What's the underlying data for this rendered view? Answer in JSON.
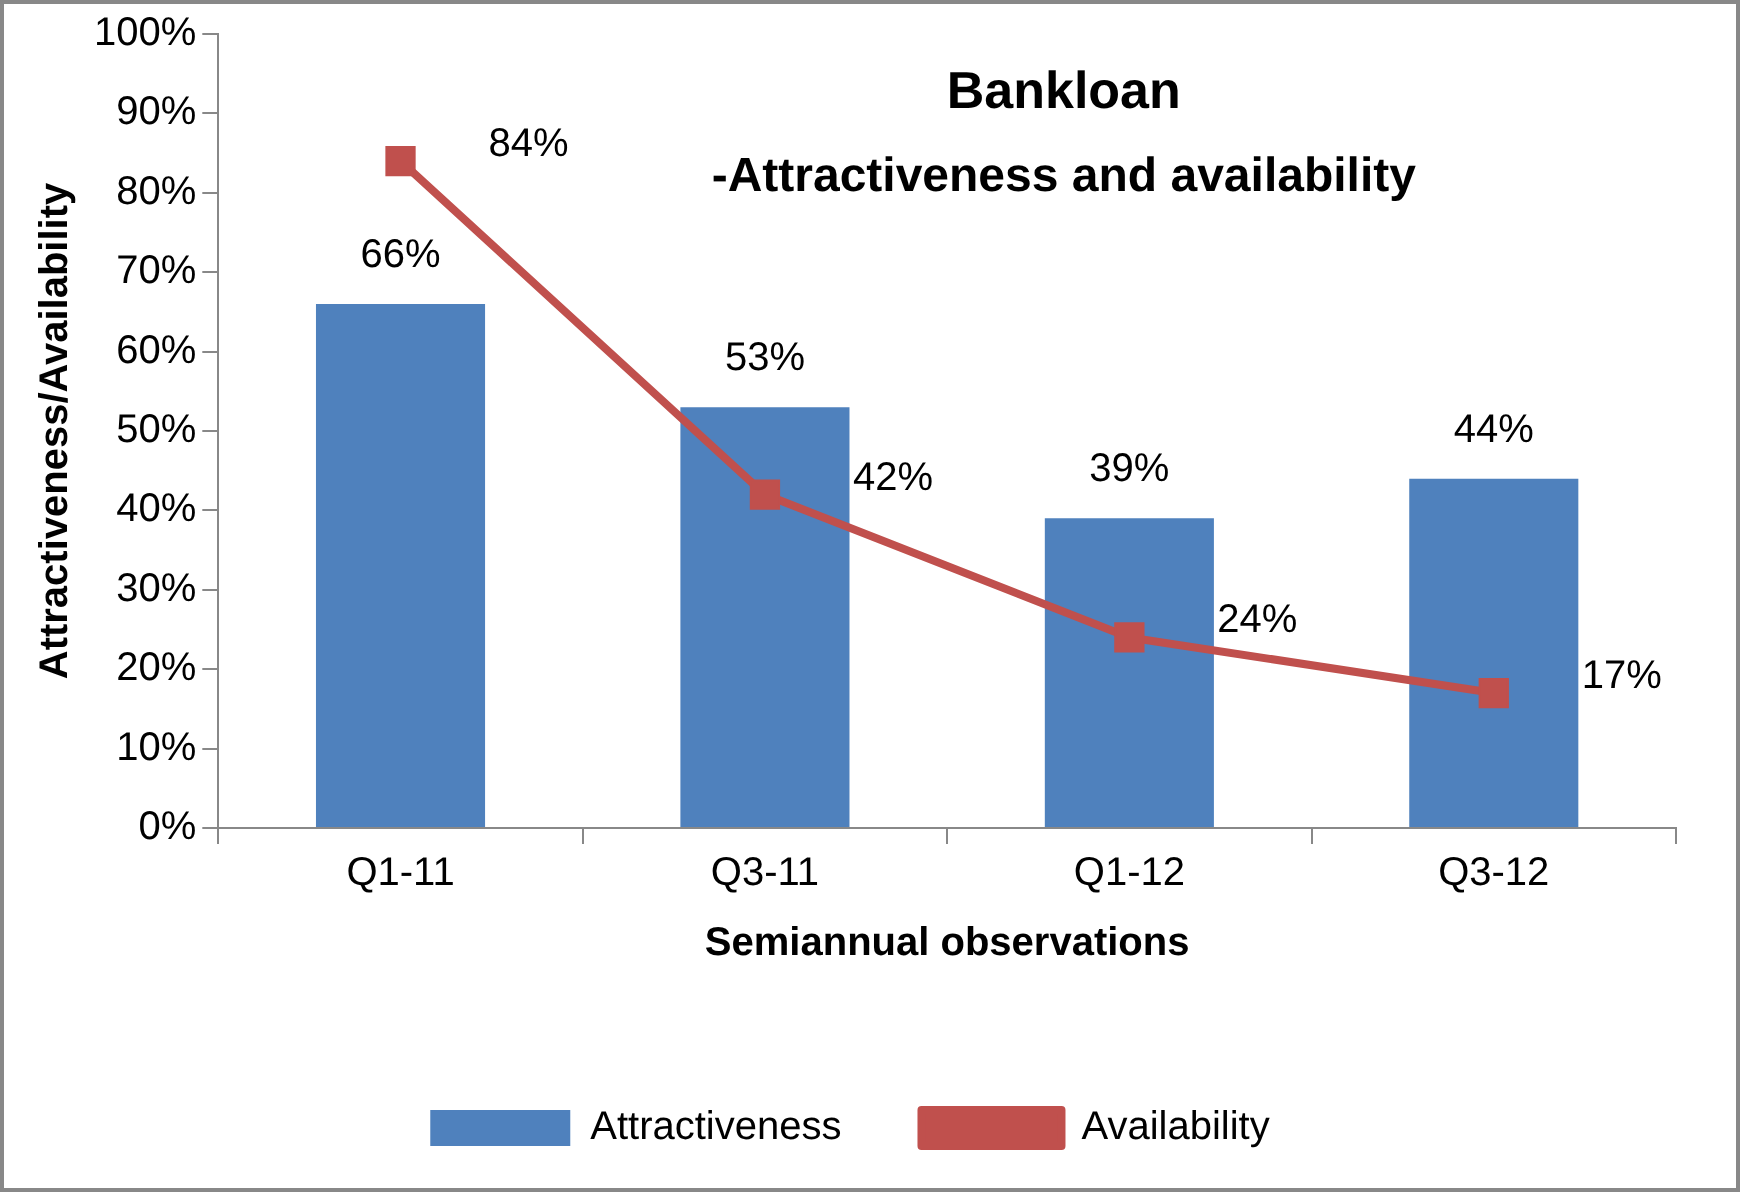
{
  "chart_data": {
    "type": "bar",
    "title": "Bankloan",
    "subtitle": "-Attractiveness and availability",
    "xlabel": "Semiannual observations",
    "ylabel": "Attractiveness/Availability",
    "categories": [
      "Q1-11",
      "Q3-11",
      "Q1-12",
      "Q3-12"
    ],
    "series": [
      {
        "name": "Attractiveness",
        "color": "#4f81bd",
        "values": [
          66,
          53,
          39,
          44
        ],
        "value_labels": [
          "66%",
          "53%",
          "39%",
          "44%"
        ]
      },
      {
        "name": "Availability",
        "type": "line",
        "color": "#c0504d",
        "values": [
          84,
          42,
          24,
          17
        ],
        "value_labels": [
          "84%",
          "42%",
          "24%",
          "17%"
        ],
        "marker": "square"
      }
    ],
    "ylim": [
      0,
      100
    ],
    "yticks": [
      {
        "value": 0,
        "label": "0%"
      },
      {
        "value": 10,
        "label": "10%"
      },
      {
        "value": 20,
        "label": "20%"
      },
      {
        "value": 30,
        "label": "30%"
      },
      {
        "value": 40,
        "label": "40%"
      },
      {
        "value": 50,
        "label": "50%"
      },
      {
        "value": 60,
        "label": "60%"
      },
      {
        "value": 70,
        "label": "70%"
      },
      {
        "value": 80,
        "label": "80%"
      },
      {
        "value": 90,
        "label": "90%"
      },
      {
        "value": 100,
        "label": "100%"
      }
    ],
    "grid": false,
    "legend": "bottom"
  }
}
